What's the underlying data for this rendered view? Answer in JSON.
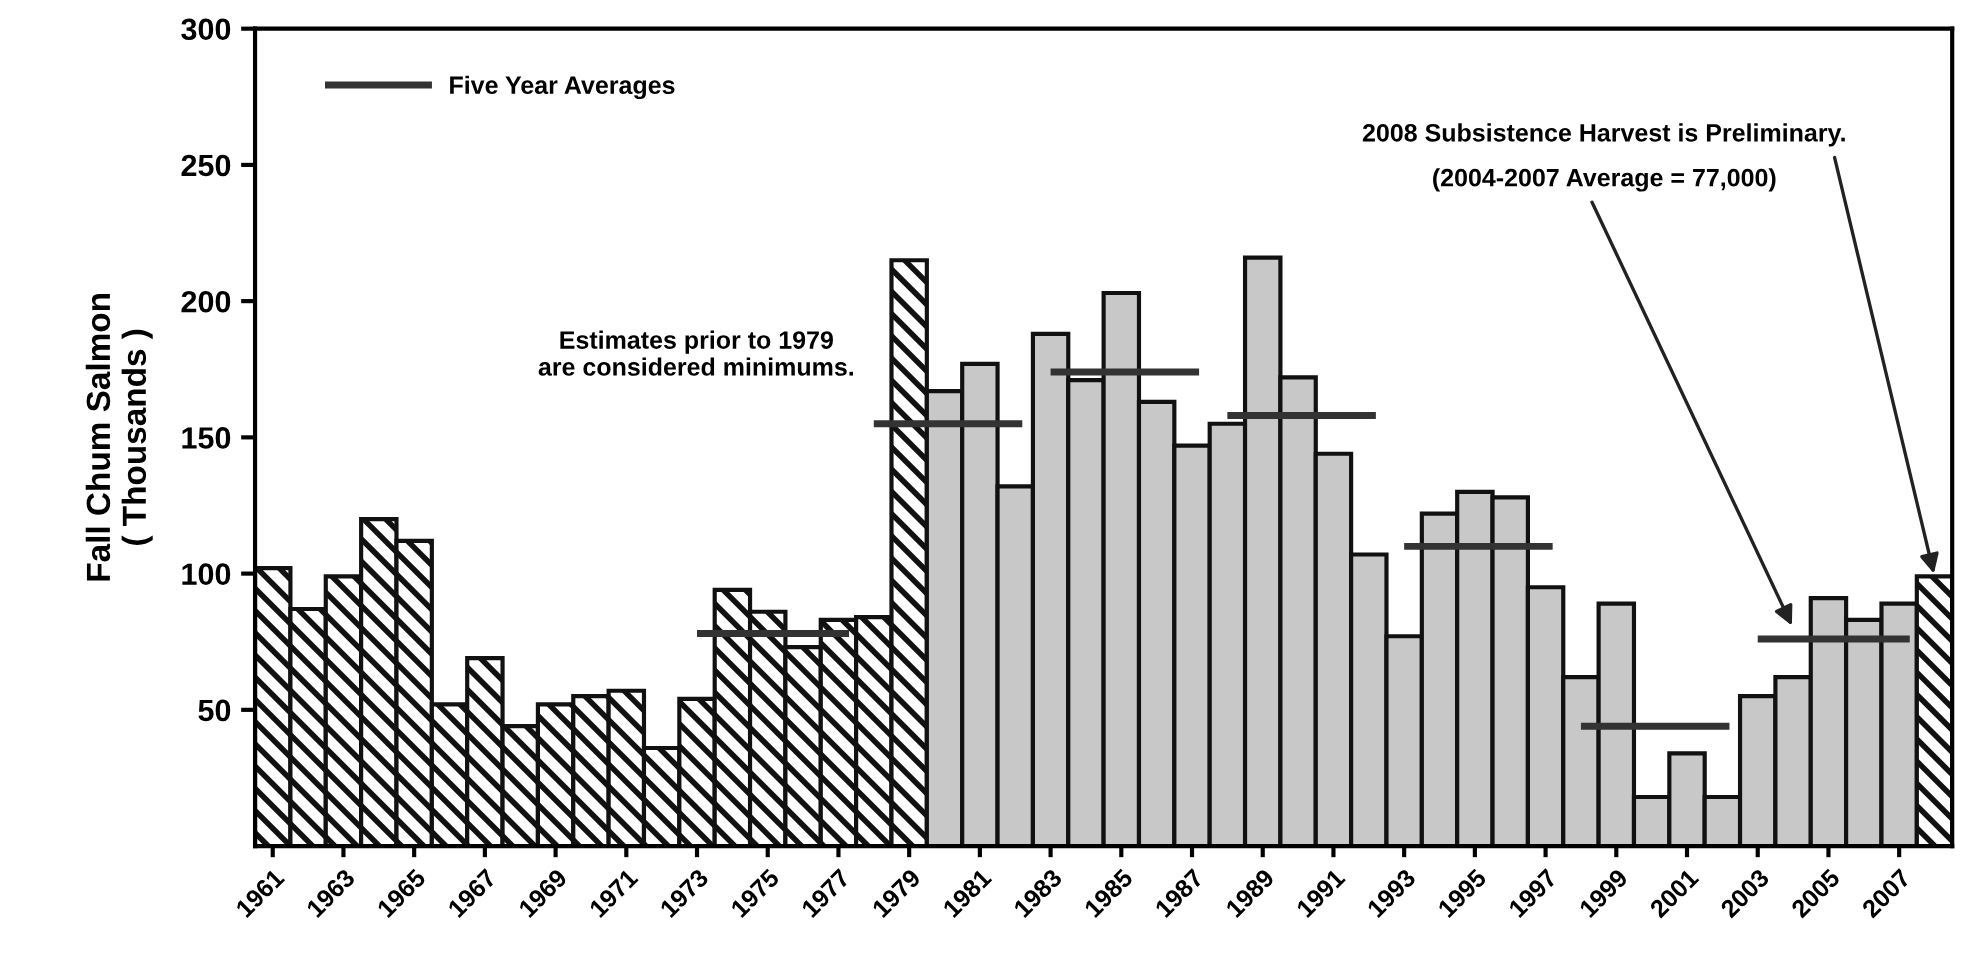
{
  "chart_data": {
    "type": "bar",
    "ylabel": "Fall Chum Salmon\n( Thousands )",
    "x": [
      1961,
      1962,
      1963,
      1964,
      1965,
      1966,
      1967,
      1968,
      1969,
      1970,
      1971,
      1972,
      1973,
      1974,
      1975,
      1976,
      1977,
      1978,
      1979,
      1980,
      1981,
      1982,
      1983,
      1984,
      1985,
      1986,
      1987,
      1988,
      1989,
      1990,
      1991,
      1992,
      1993,
      1994,
      1995,
      1996,
      1997,
      1998,
      1999,
      2000,
      2001,
      2002,
      2003,
      2004,
      2005,
      2006,
      2007,
      2008
    ],
    "xlim": [
      1960.5,
      2008.5
    ],
    "xticks": [
      1961,
      1963,
      1965,
      1967,
      1969,
      1971,
      1973,
      1975,
      1977,
      1979,
      1981,
      1983,
      1985,
      1987,
      1989,
      1991,
      1993,
      1995,
      1997,
      1999,
      2001,
      2003,
      2005,
      2007
    ],
    "ylim": [
      0,
      300
    ],
    "yticks": [
      50,
      100,
      150,
      200,
      250,
      300
    ],
    "series": [
      {
        "values": [
          102,
          87,
          99,
          120,
          112,
          52,
          69,
          44,
          52,
          55,
          57,
          36,
          54,
          94,
          86,
          73,
          83,
          84,
          215,
          167,
          177,
          132,
          188,
          171,
          203,
          163,
          147,
          155,
          216,
          172,
          144,
          107,
          77,
          122,
          130,
          128,
          95,
          62,
          89,
          18,
          34,
          18,
          55,
          62,
          91,
          83,
          89,
          99
        ],
        "colors": [
          "#111111",
          "#111111",
          "#111111",
          "#111111",
          "#111111",
          "#111111",
          "#111111",
          "#111111",
          "#111111",
          "#111111",
          "#111111",
          "#111111",
          "#111111",
          "#111111",
          "#111111",
          "#111111",
          "#111111",
          "#111111",
          "#111111",
          "#c8c8c8",
          "#c8c8c8",
          "#c8c8c8",
          "#c8c8c8",
          "#c8c8c8",
          "#c8c8c8",
          "#c8c8c8",
          "#c8c8c8",
          "#c8c8c8",
          "#c8c8c8",
          "#c8c8c8",
          "#c8c8c8",
          "#c8c8c8",
          "#c8c8c8",
          "#c8c8c8",
          "#c8c8c8",
          "#c8c8c8",
          "#c8c8c8",
          "#c8c8c8",
          "#c8c8c8",
          "#c8c8c8",
          "#c8c8c8",
          "#c8c8c8",
          "#c8c8c8",
          "#c8c8c8",
          "#c8c8c8",
          "#c8c8c8",
          "#c8c8c8",
          "#111111"
        ]
      },
      {
        "type": "line",
        "name": "Five Year Averages",
        "color": "#333333",
        "x": [
          1973,
          1977.3
        ],
        "values": [
          78,
          78
        ]
      },
      {
        "type": "line",
        "color": "#333333",
        "x": [
          1978,
          1982.2
        ],
        "values": [
          155,
          155
        ]
      },
      {
        "type": "line",
        "color": "#333333",
        "x": [
          1983,
          1987.2
        ],
        "values": [
          174,
          174
        ]
      },
      {
        "type": "line",
        "color": "#333333",
        "x": [
          1988,
          1992.2
        ],
        "values": [
          158,
          158
        ]
      },
      {
        "type": "line",
        "color": "#333333",
        "x": [
          1993,
          1997.2
        ],
        "values": [
          110,
          110
        ]
      },
      {
        "type": "line",
        "color": "#333333",
        "x": [
          1998,
          2002.2
        ],
        "values": [
          44,
          44
        ]
      },
      {
        "type": "line",
        "color": "#333333",
        "x": [
          2003,
          2007.3
        ],
        "values": [
          76,
          76
        ]
      }
    ],
    "annotations": [
      "Estimates prior to 1979\nare considered minimums.",
      {
        "text": "2008 Subsistence Harvest is Preliminary.",
        "x": 2008,
        "y": 99
      },
      {
        "text": "(2004-2007 Average = 77,000)",
        "x": 2004,
        "y": 80
      }
    ],
    "legend": "top left"
  }
}
